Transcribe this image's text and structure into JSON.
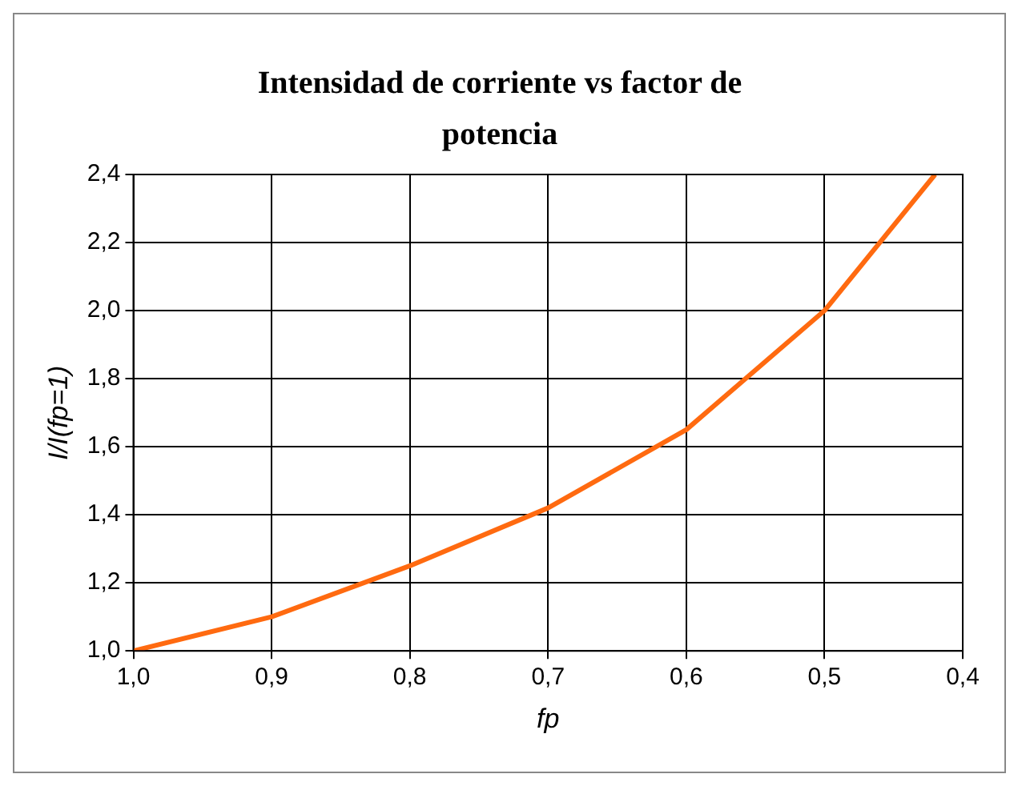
{
  "chart_data": {
    "type": "line",
    "title": "Intensidad de corriente vs factor de potencia",
    "xlabel": "fp",
    "ylabel": "I/I(fp=1)",
    "x": [
      1.0,
      0.9,
      0.8,
      0.7,
      0.6,
      0.5,
      0.42
    ],
    "series": [
      {
        "color": "#ff6a10",
        "values": [
          1.0,
          1.1,
          1.25,
          1.42,
          1.65,
          2.0,
          2.4
        ]
      }
    ],
    "xlim": [
      1.0,
      0.4
    ],
    "xticks": [
      {
        "value": 1.0,
        "label": "1,0"
      },
      {
        "value": 0.9,
        "label": "0,9"
      },
      {
        "value": 0.8,
        "label": "0,8"
      },
      {
        "value": 0.7,
        "label": "0,7"
      },
      {
        "value": 0.6,
        "label": "0,6"
      },
      {
        "value": 0.5,
        "label": "0,5"
      },
      {
        "value": 0.4,
        "label": "0,4"
      }
    ],
    "ylim": [
      1.0,
      2.4
    ],
    "yticks": [
      {
        "value": 1.0,
        "label": "1,0"
      },
      {
        "value": 1.2,
        "label": "1,2"
      },
      {
        "value": 1.4,
        "label": "1,4"
      },
      {
        "value": 1.6,
        "label": "1,6"
      },
      {
        "value": 1.8,
        "label": "1,8"
      },
      {
        "value": 2.0,
        "label": "2,0"
      },
      {
        "value": 2.2,
        "label": "2,2"
      },
      {
        "value": 2.4,
        "label": "2,4"
      }
    ],
    "grid": true,
    "legend": false,
    "marker": "none",
    "line_style": "solid"
  }
}
